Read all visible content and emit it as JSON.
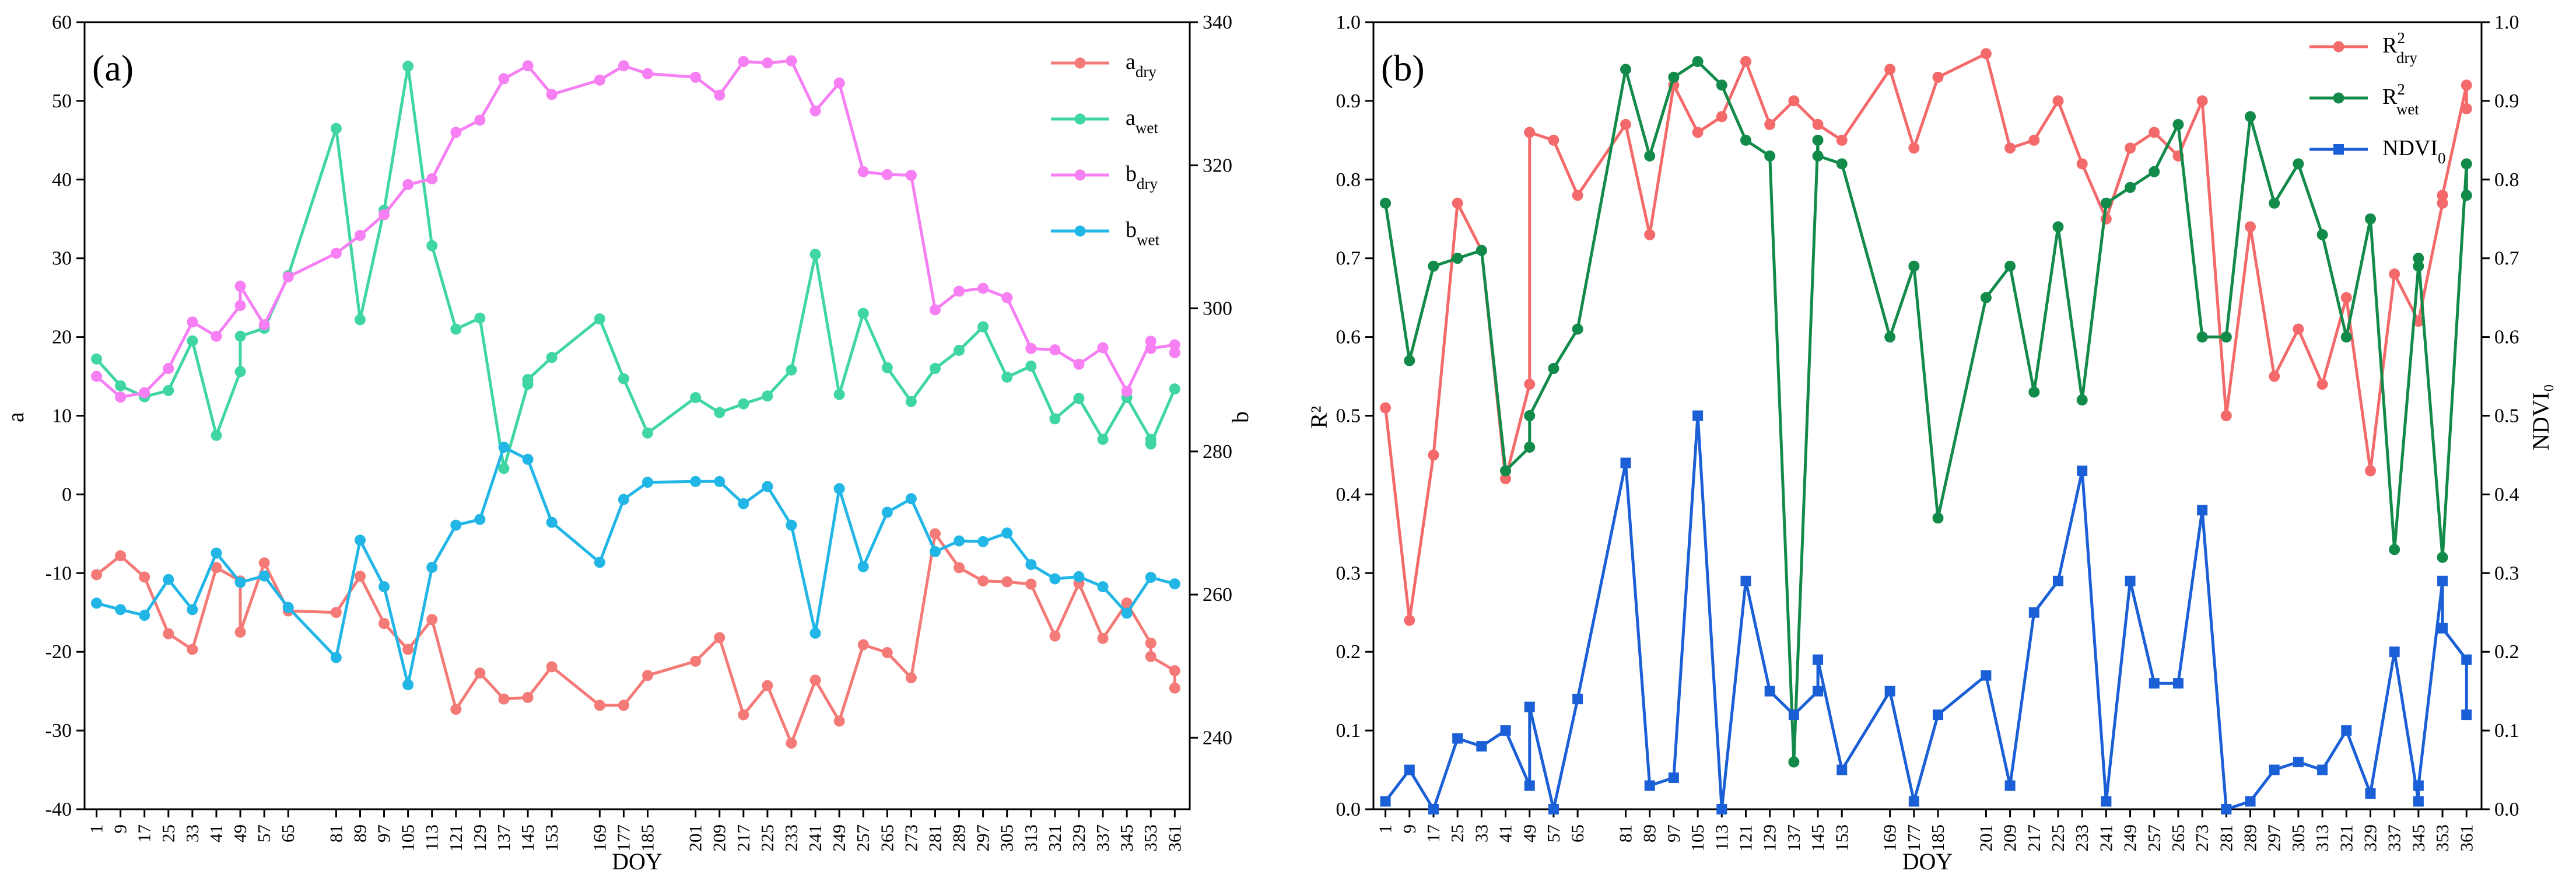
{
  "colors": {
    "a_dry": "#f47a77",
    "a_wet": "#3fd6a2",
    "b_dry": "#f57ff3",
    "b_wet": "#22b6e6",
    "r2_dry": "#f46a6a",
    "r2_wet": "#128a4a",
    "ndvi0": "#1a5fd6"
  },
  "chart_data": [
    {
      "type": "line",
      "panel_label": "(a)",
      "xlabel": "DOY",
      "ylabel": "a",
      "y2label": "b",
      "ylim": [
        -40,
        60
      ],
      "y2lim": [
        230,
        340
      ],
      "xlim": [
        -3,
        366
      ],
      "x_ticks": [
        1,
        9,
        17,
        25,
        33,
        41,
        49,
        57,
        65,
        81,
        89,
        97,
        105,
        113,
        121,
        129,
        137,
        145,
        153,
        169,
        177,
        185,
        201,
        209,
        217,
        225,
        233,
        241,
        249,
        257,
        265,
        273,
        281,
        289,
        297,
        305,
        313,
        321,
        329,
        337,
        345,
        353,
        361
      ],
      "y_ticks": [
        -40,
        -30,
        -20,
        -10,
        0,
        10,
        20,
        30,
        40,
        50,
        60
      ],
      "y2_ticks": [
        240,
        260,
        280,
        300,
        320,
        340
      ],
      "legend": {
        "position": "top-right",
        "entries": [
          {
            "base": "a",
            "sub": "dry",
            "sup": ""
          },
          {
            "base": "a",
            "sub": "wet",
            "sup": ""
          },
          {
            "base": "b",
            "sub": "dry",
            "sup": ""
          },
          {
            "base": "b",
            "sub": "wet",
            "sup": ""
          }
        ]
      },
      "series": [
        {
          "name": "a_dry",
          "axis": "left",
          "marker": "circle",
          "x": [
            1,
            9,
            17,
            25,
            33,
            41,
            49,
            49,
            57,
            65,
            81,
            89,
            97,
            105,
            113,
            121,
            129,
            137,
            145,
            153,
            169,
            177,
            185,
            201,
            209,
            217,
            225,
            233,
            241,
            249,
            257,
            265,
            273,
            281,
            289,
            297,
            305,
            313,
            321,
            329,
            337,
            345,
            353,
            353,
            361,
            361
          ],
          "y": [
            -10.2,
            -7.8,
            -10.5,
            -17.7,
            -19.7,
            -9.3,
            -11,
            -17.5,
            -8.7,
            -14.8,
            -15,
            -10.4,
            -16.4,
            -19.7,
            -15.9,
            -27.3,
            -22.7,
            -26,
            -25.8,
            -21.9,
            -26.8,
            -26.8,
            -23,
            -21.2,
            -18.2,
            -28,
            -24.3,
            -31.6,
            -23.6,
            -28.8,
            -19.1,
            -20.1,
            -23.3,
            -5,
            -9.3,
            -11,
            -11.1,
            -11.4,
            -18,
            -11.3,
            -18.3,
            -13.8,
            -18.9,
            -20.6,
            -22.4,
            -24.6
          ]
        },
        {
          "name": "a_wet",
          "axis": "left",
          "marker": "circle",
          "x": [
            1,
            9,
            17,
            25,
            33,
            41,
            49,
            49,
            57,
            65,
            81,
            89,
            97,
            105,
            113,
            121,
            129,
            137,
            145,
            145,
            153,
            169,
            177,
            185,
            201,
            209,
            217,
            225,
            233,
            241,
            249,
            257,
            265,
            273,
            281,
            289,
            297,
            305,
            313,
            321,
            329,
            337,
            345,
            353,
            353,
            361
          ],
          "y": [
            17.2,
            13.8,
            12.4,
            13.2,
            19.5,
            7.5,
            15.6,
            20.1,
            21.1,
            27.8,
            46.5,
            22.2,
            36.1,
            54.4,
            31.6,
            21,
            22.4,
            3.3,
            14,
            14.6,
            17.4,
            22.3,
            14.7,
            7.8,
            12.3,
            10.4,
            11.5,
            12.5,
            15.8,
            30.5,
            12.7,
            23,
            16.1,
            11.8,
            16,
            18.3,
            21.3,
            14.9,
            16.3,
            9.6,
            12.2,
            7,
            12.3,
            7,
            6.4,
            13.4
          ]
        },
        {
          "name": "b_dry",
          "axis": "right",
          "marker": "circle",
          "x": [
            1,
            9,
            17,
            25,
            33,
            41,
            49,
            49,
            57,
            65,
            81,
            89,
            97,
            105,
            113,
            121,
            129,
            137,
            145,
            153,
            169,
            177,
            185,
            201,
            209,
            217,
            225,
            233,
            241,
            249,
            257,
            265,
            273,
            281,
            289,
            297,
            305,
            313,
            321,
            329,
            337,
            345,
            353,
            353,
            361,
            361
          ],
          "y": [
            290.5,
            287.6,
            288.2,
            291.6,
            298.1,
            296.1,
            300.4,
            303.1,
            297.7,
            304.4,
            307.7,
            310.2,
            313.1,
            317.3,
            318.1,
            324.6,
            326.3,
            332.1,
            333.9,
            329.9,
            331.9,
            333.9,
            332.8,
            332.3,
            329.8,
            334.5,
            334.3,
            334.6,
            327.6,
            331.5,
            319.1,
            318.7,
            318.6,
            299.8,
            302.4,
            302.8,
            301.5,
            294.4,
            294.2,
            292.2,
            294.5,
            288.4,
            295.4,
            294.4,
            294.9,
            293.8
          ]
        },
        {
          "name": "b_wet",
          "axis": "right",
          "marker": "circle",
          "x": [
            1,
            9,
            17,
            25,
            33,
            41,
            49,
            57,
            65,
            81,
            89,
            97,
            105,
            113,
            121,
            129,
            137,
            145,
            153,
            169,
            177,
            185,
            201,
            209,
            217,
            225,
            233,
            241,
            249,
            257,
            265,
            273,
            281,
            289,
            297,
            305,
            313,
            321,
            329,
            337,
            345,
            353,
            361
          ],
          "y": [
            258.8,
            257.9,
            257.1,
            262.1,
            257.9,
            265.8,
            261.7,
            262.6,
            258.2,
            251.2,
            267.6,
            261.1,
            247.4,
            263.8,
            269.7,
            270.5,
            280.6,
            278.9,
            270.1,
            264.5,
            273.3,
            275.7,
            275.8,
            275.8,
            272.7,
            275.1,
            269.7,
            254.6,
            274.8,
            263.9,
            271.5,
            273.4,
            266,
            267.5,
            267.4,
            268.6,
            264.2,
            262.2,
            262.5,
            261.1,
            257.4,
            262.4,
            261.5
          ]
        }
      ]
    },
    {
      "type": "line",
      "panel_label": "(b)",
      "xlabel": "DOY",
      "ylabel": "R²",
      "y2label": "NDVI₀",
      "ylim": [
        0,
        1
      ],
      "y2lim": [
        0,
        1
      ],
      "xlim": [
        -3,
        366
      ],
      "x_ticks": [
        1,
        9,
        17,
        25,
        33,
        41,
        49,
        57,
        65,
        81,
        89,
        97,
        105,
        113,
        121,
        129,
        137,
        145,
        153,
        169,
        177,
        185,
        201,
        209,
        217,
        225,
        233,
        241,
        249,
        257,
        265,
        273,
        281,
        289,
        297,
        305,
        313,
        321,
        329,
        337,
        345,
        353,
        361
      ],
      "y_ticks": [
        0.0,
        0.1,
        0.2,
        0.3,
        0.4,
        0.5,
        0.6,
        0.7,
        0.8,
        0.9,
        1.0
      ],
      "y2_ticks": [
        0.0,
        0.1,
        0.2,
        0.3,
        0.4,
        0.5,
        0.6,
        0.7,
        0.8,
        0.9,
        1.0
      ],
      "legend": {
        "position": "top-right",
        "entries": [
          {
            "base": "R",
            "sub": "dry",
            "sup": "2"
          },
          {
            "base": "R",
            "sub": "wet",
            "sup": "2"
          },
          {
            "base": "NDVI",
            "sub": "0",
            "sup": ""
          }
        ]
      },
      "series": [
        {
          "name": "R2_dry",
          "axis": "left",
          "marker": "circle",
          "x": [
            1,
            9,
            17,
            25,
            33,
            41,
            49,
            49,
            57,
            65,
            81,
            89,
            97,
            105,
            113,
            121,
            129,
            137,
            145,
            153,
            169,
            177,
            185,
            201,
            209,
            217,
            225,
            233,
            241,
            249,
            257,
            265,
            273,
            281,
            289,
            297,
            305,
            313,
            321,
            329,
            337,
            345,
            353,
            353,
            361,
            361
          ],
          "y": [
            0.51,
            0.24,
            0.45,
            0.77,
            0.71,
            0.42,
            0.54,
            0.86,
            0.85,
            0.78,
            0.87,
            0.73,
            0.92,
            0.86,
            0.88,
            0.95,
            0.87,
            0.9,
            0.87,
            0.85,
            0.94,
            0.84,
            0.93,
            0.96,
            0.84,
            0.85,
            0.9,
            0.82,
            0.75,
            0.84,
            0.86,
            0.83,
            0.9,
            0.5,
            0.74,
            0.55,
            0.61,
            0.54,
            0.65,
            0.43,
            0.68,
            0.62,
            0.77,
            0.78,
            0.92,
            0.89
          ]
        },
        {
          "name": "R2_wet",
          "axis": "left",
          "marker": "circle",
          "x": [
            1,
            9,
            17,
            25,
            33,
            41,
            49,
            49,
            57,
            65,
            81,
            89,
            97,
            105,
            113,
            121,
            129,
            137,
            145,
            145,
            153,
            169,
            177,
            185,
            201,
            209,
            217,
            225,
            233,
            241,
            249,
            257,
            265,
            273,
            281,
            289,
            297,
            305,
            313,
            321,
            329,
            337,
            345,
            345,
            353,
            361,
            361
          ],
          "y": [
            0.77,
            0.57,
            0.69,
            0.7,
            0.71,
            0.43,
            0.46,
            0.5,
            0.56,
            0.61,
            0.94,
            0.83,
            0.93,
            0.95,
            0.92,
            0.85,
            0.83,
            0.06,
            0.85,
            0.83,
            0.82,
            0.6,
            0.69,
            0.37,
            0.65,
            0.69,
            0.53,
            0.74,
            0.52,
            0.77,
            0.79,
            0.81,
            0.87,
            0.6,
            0.6,
            0.88,
            0.77,
            0.82,
            0.73,
            0.6,
            0.75,
            0.33,
            0.69,
            0.7,
            0.32,
            0.82,
            0.78
          ]
        },
        {
          "name": "NDVI0",
          "axis": "right",
          "marker": "square",
          "x": [
            1,
            9,
            17,
            25,
            33,
            41,
            49,
            49,
            57,
            65,
            81,
            89,
            97,
            105,
            113,
            121,
            129,
            137,
            145,
            145,
            153,
            169,
            177,
            185,
            201,
            209,
            217,
            225,
            233,
            241,
            249,
            257,
            265,
            273,
            281,
            289,
            297,
            305,
            313,
            321,
            329,
            337,
            345,
            345,
            353,
            353,
            361,
            361
          ],
          "y": [
            0.01,
            0.05,
            0.0,
            0.09,
            0.08,
            0.1,
            0.03,
            0.13,
            0.0,
            0.14,
            0.44,
            0.03,
            0.04,
            0.5,
            0.0,
            0.29,
            0.15,
            0.12,
            0.15,
            0.19,
            0.05,
            0.15,
            0.01,
            0.12,
            0.17,
            0.03,
            0.25,
            0.29,
            0.43,
            0.01,
            0.29,
            0.16,
            0.16,
            0.38,
            0.0,
            0.01,
            0.05,
            0.06,
            0.05,
            0.1,
            0.02,
            0.2,
            0.01,
            0.03,
            0.29,
            0.23,
            0.19,
            0.12
          ]
        }
      ]
    }
  ]
}
